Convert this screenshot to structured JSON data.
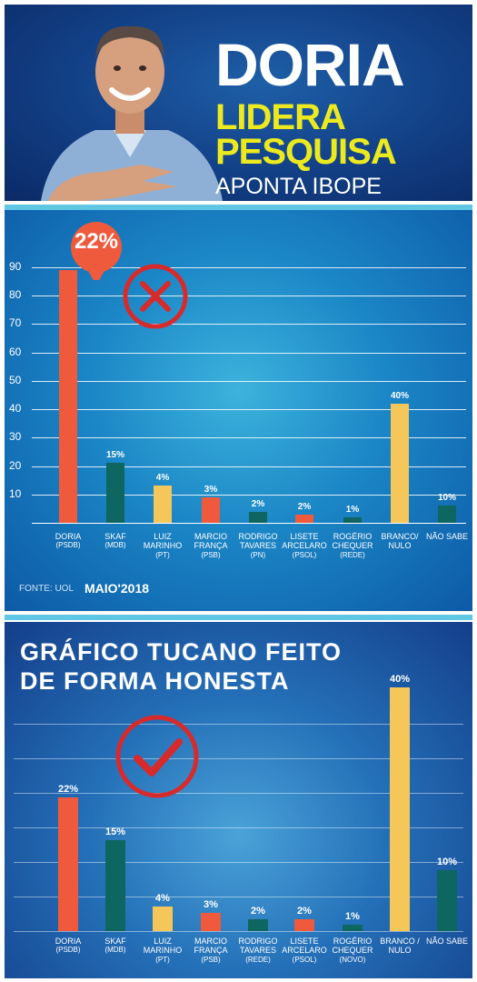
{
  "header": {
    "title_line1": "DORIA",
    "title_line2": "LIDERA",
    "title_line3": "PESQUISA",
    "title_line4": "APONTA IBOPE"
  },
  "chart_data": [
    {
      "type": "bar",
      "title": "",
      "y_ticks": [
        "90",
        "80",
        "70",
        "60",
        "50",
        "40",
        "30",
        "20",
        "10"
      ],
      "ylim": [
        0,
        90
      ],
      "categories": [
        {
          "name": "DORIA",
          "party": "(PSDB)"
        },
        {
          "name": "SKAF",
          "party": "(MDB)"
        },
        {
          "name": "LUIZ MARINHO",
          "party": "(PT)"
        },
        {
          "name": "MARCIO FRANÇA",
          "party": "(PSB)"
        },
        {
          "name": "RODRIGO TAVARES",
          "party": "(PN)"
        },
        {
          "name": "LISETE ARCELARO",
          "party": "(PSOL)"
        },
        {
          "name": "ROGÉRIO CHEQUER",
          "party": "(REDE)"
        },
        {
          "name": "BRANCO/ NULO",
          "party": ""
        },
        {
          "name": "NÃO SABE",
          "party": ""
        }
      ],
      "labels": [
        "22%",
        "15%",
        "4%",
        "3%",
        "2%",
        "2%",
        "1%",
        "40%",
        "10%"
      ],
      "plotted_heights": [
        89,
        21,
        13,
        9,
        4,
        3,
        2,
        42,
        6
      ],
      "colors": [
        "#f05a3c",
        "#0e6660",
        "#f5c65a",
        "#f05a3c",
        "#0e6660",
        "#f05a3c",
        "#0e6660",
        "#f5c65a",
        "#0e6660"
      ],
      "marker": "cross-icon",
      "source": "FONTE: UOL",
      "date": "MAIO'2018"
    },
    {
      "type": "bar",
      "title_line1": "GRÁFICO TUCANO FEITO",
      "title_line2": "DE FORMA HONESTA",
      "categories": [
        {
          "name": "DORIA",
          "party": "(PSDB)"
        },
        {
          "name": "SKAF",
          "party": "(MDB)"
        },
        {
          "name": "LUIZ MARINHO",
          "party": "(PT)"
        },
        {
          "name": "MARCIO FRANÇA",
          "party": "(PSB)"
        },
        {
          "name": "RODRIGO TAVARES",
          "party": "(REDE)"
        },
        {
          "name": "LISETE ARCELARO",
          "party": "(PSOL)"
        },
        {
          "name": "ROGÉRIO CHEQUER",
          "party": "(NOVO)"
        },
        {
          "name": "BRANCO / NULO",
          "party": ""
        },
        {
          "name": "NÃO SABE",
          "party": ""
        }
      ],
      "values": [
        22,
        15,
        4,
        3,
        2,
        2,
        1,
        40,
        10
      ],
      "labels": [
        "22%",
        "15%",
        "4%",
        "3%",
        "2%",
        "2%",
        "1%",
        "40%",
        "10%"
      ],
      "ylim": [
        0,
        40
      ],
      "colors": [
        "#f05a3c",
        "#0e6660",
        "#f5c65a",
        "#f05a3c",
        "#0e6660",
        "#f05a3c",
        "#0e6660",
        "#f5c65a",
        "#0e6660"
      ],
      "marker": "check-icon"
    }
  ]
}
